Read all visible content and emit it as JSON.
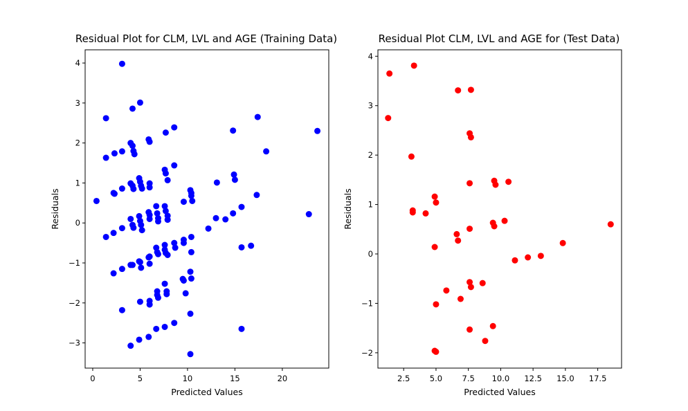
{
  "chart_data": [
    {
      "type": "scatter",
      "title": "Residual Plot for CLM, LVL and AGE (Training Data)",
      "xlabel": "Predicted Values",
      "ylabel": "Residuals",
      "xlim": [
        -0.8,
        24.9
      ],
      "ylim": [
        -3.63,
        4.33
      ],
      "xticks": [
        0,
        5,
        10,
        15,
        20
      ],
      "xtick_labels": [
        "0",
        "5",
        "10",
        "15",
        "20"
      ],
      "yticks": [
        -3,
        -2,
        -1,
        0,
        1,
        2,
        3,
        4
      ],
      "ytick_labels": [
        "−3",
        "−2",
        "−1",
        "0",
        "1",
        "2",
        "3",
        "4"
      ],
      "grid": false,
      "color": "#0000ff",
      "points": [
        {
          "x": 3.1,
          "y": 3.98
        },
        {
          "x": 5.0,
          "y": 3.01
        },
        {
          "x": 4.2,
          "y": 2.86
        },
        {
          "x": 1.4,
          "y": 2.62
        },
        {
          "x": 17.4,
          "y": 2.65
        },
        {
          "x": 8.6,
          "y": 2.39
        },
        {
          "x": 7.7,
          "y": 2.26
        },
        {
          "x": 14.8,
          "y": 2.31
        },
        {
          "x": 23.7,
          "y": 2.3
        },
        {
          "x": 5.9,
          "y": 2.09
        },
        {
          "x": 6.0,
          "y": 2.03
        },
        {
          "x": 4.0,
          "y": 2.0
        },
        {
          "x": 4.2,
          "y": 1.93
        },
        {
          "x": 4.3,
          "y": 1.8
        },
        {
          "x": 3.1,
          "y": 1.79
        },
        {
          "x": 2.3,
          "y": 1.74
        },
        {
          "x": 4.4,
          "y": 1.72
        },
        {
          "x": 18.3,
          "y": 1.79
        },
        {
          "x": 1.4,
          "y": 1.63
        },
        {
          "x": 8.6,
          "y": 1.44
        },
        {
          "x": 7.6,
          "y": 1.33
        },
        {
          "x": 7.7,
          "y": 1.24
        },
        {
          "x": 14.9,
          "y": 1.21
        },
        {
          "x": 4.9,
          "y": 1.12
        },
        {
          "x": 15.0,
          "y": 1.08
        },
        {
          "x": 7.9,
          "y": 1.07
        },
        {
          "x": 13.1,
          "y": 1.01
        },
        {
          "x": 5.0,
          "y": 1.03
        },
        {
          "x": 4.0,
          "y": 0.99
        },
        {
          "x": 6.0,
          "y": 0.99
        },
        {
          "x": 5.1,
          "y": 0.93
        },
        {
          "x": 4.2,
          "y": 0.93
        },
        {
          "x": 4.3,
          "y": 0.85
        },
        {
          "x": 3.1,
          "y": 0.86
        },
        {
          "x": 5.2,
          "y": 0.86
        },
        {
          "x": 6.0,
          "y": 0.89
        },
        {
          "x": 10.3,
          "y": 0.82
        },
        {
          "x": 10.4,
          "y": 0.75
        },
        {
          "x": 2.2,
          "y": 0.75
        },
        {
          "x": 2.3,
          "y": 0.73
        },
        {
          "x": 10.4,
          "y": 0.68
        },
        {
          "x": 17.3,
          "y": 0.7
        },
        {
          "x": 0.4,
          "y": 0.55
        },
        {
          "x": 9.6,
          "y": 0.53
        },
        {
          "x": 10.5,
          "y": 0.55
        },
        {
          "x": 7.6,
          "y": 0.42
        },
        {
          "x": 6.7,
          "y": 0.42
        },
        {
          "x": 15.7,
          "y": 0.4
        },
        {
          "x": 5.9,
          "y": 0.27
        },
        {
          "x": 7.7,
          "y": 0.3
        },
        {
          "x": 6.0,
          "y": 0.2
        },
        {
          "x": 6.8,
          "y": 0.24
        },
        {
          "x": 4.9,
          "y": 0.17
        },
        {
          "x": 7.9,
          "y": 0.18
        },
        {
          "x": 22.8,
          "y": 0.22
        },
        {
          "x": 14.8,
          "y": 0.24
        },
        {
          "x": 13.0,
          "y": 0.12
        },
        {
          "x": 4.0,
          "y": 0.1
        },
        {
          "x": 6.0,
          "y": 0.1
        },
        {
          "x": 6.9,
          "y": 0.12
        },
        {
          "x": 5.0,
          "y": 0.05
        },
        {
          "x": 6.9,
          "y": 0.04
        },
        {
          "x": 7.9,
          "y": 0.08
        },
        {
          "x": 14.0,
          "y": 0.09
        },
        {
          "x": 4.2,
          "y": -0.05
        },
        {
          "x": 5.1,
          "y": -0.05
        },
        {
          "x": 4.3,
          "y": -0.12
        },
        {
          "x": 3.1,
          "y": -0.13
        },
        {
          "x": 12.2,
          "y": -0.14
        },
        {
          "x": 5.2,
          "y": -0.18
        },
        {
          "x": 2.2,
          "y": -0.25
        },
        {
          "x": 1.4,
          "y": -0.35
        },
        {
          "x": 10.4,
          "y": -0.35
        },
        {
          "x": 9.6,
          "y": -0.42
        },
        {
          "x": 8.6,
          "y": -0.5
        },
        {
          "x": 9.6,
          "y": -0.5
        },
        {
          "x": 7.6,
          "y": -0.55
        },
        {
          "x": 16.7,
          "y": -0.57
        },
        {
          "x": 15.7,
          "y": -0.61
        },
        {
          "x": 6.7,
          "y": -0.62
        },
        {
          "x": 8.7,
          "y": -0.62
        },
        {
          "x": 7.6,
          "y": -0.67
        },
        {
          "x": 6.8,
          "y": -0.73
        },
        {
          "x": 10.4,
          "y": -0.73
        },
        {
          "x": 7.7,
          "y": -0.75
        },
        {
          "x": 6.9,
          "y": -0.78
        },
        {
          "x": 7.9,
          "y": -0.8
        },
        {
          "x": 6.0,
          "y": -0.84
        },
        {
          "x": 5.9,
          "y": -0.86
        },
        {
          "x": 4.9,
          "y": -0.96
        },
        {
          "x": 5.0,
          "y": -0.98
        },
        {
          "x": 6.0,
          "y": -1.02
        },
        {
          "x": 4.0,
          "y": -1.05
        },
        {
          "x": 4.2,
          "y": -1.05
        },
        {
          "x": 5.1,
          "y": -1.12
        },
        {
          "x": 3.1,
          "y": -1.15
        },
        {
          "x": 2.2,
          "y": -1.26
        },
        {
          "x": 10.3,
          "y": -1.22
        },
        {
          "x": 10.4,
          "y": -1.39
        },
        {
          "x": 9.5,
          "y": -1.4
        },
        {
          "x": 9.6,
          "y": -1.44
        },
        {
          "x": 7.6,
          "y": -1.52
        },
        {
          "x": 9.8,
          "y": -1.76
        },
        {
          "x": 6.8,
          "y": -1.71
        },
        {
          "x": 7.8,
          "y": -1.71
        },
        {
          "x": 7.8,
          "y": -1.78
        },
        {
          "x": 6.8,
          "y": -1.8
        },
        {
          "x": 6.9,
          "y": -1.87
        },
        {
          "x": 5.0,
          "y": -1.97
        },
        {
          "x": 6.0,
          "y": -1.95
        },
        {
          "x": 6.0,
          "y": -2.04
        },
        {
          "x": 3.1,
          "y": -2.18
        },
        {
          "x": 10.3,
          "y": -2.27
        },
        {
          "x": 8.6,
          "y": -2.5
        },
        {
          "x": 7.6,
          "y": -2.6
        },
        {
          "x": 6.7,
          "y": -2.65
        },
        {
          "x": 15.7,
          "y": -2.65
        },
        {
          "x": 5.9,
          "y": -2.85
        },
        {
          "x": 4.9,
          "y": -2.92
        },
        {
          "x": 4.0,
          "y": -3.07
        },
        {
          "x": 10.3,
          "y": -3.28
        }
      ]
    },
    {
      "type": "scatter",
      "title": "Residual Plot CLM, LVL and AGE for (Test Data)",
      "xlabel": "Predicted Values",
      "ylabel": "Residuals",
      "xlim": [
        0.51,
        19.34
      ],
      "ylim": [
        -2.31,
        4.13
      ],
      "xticks": [
        2.5,
        5.0,
        7.5,
        10.0,
        12.5,
        15.0,
        17.5
      ],
      "xtick_labels": [
        "2.5",
        "5.0",
        "7.5",
        "10.0",
        "12.5",
        "15.0",
        "17.5"
      ],
      "yticks": [
        -2,
        -1,
        0,
        1,
        2,
        3,
        4
      ],
      "ytick_labels": [
        "−2",
        "−1",
        "0",
        "1",
        "2",
        "3",
        "4"
      ],
      "grid": false,
      "color": "#ff0000",
      "points": [
        {
          "x": 1.4,
          "y": 3.65
        },
        {
          "x": 3.3,
          "y": 3.81
        },
        {
          "x": 6.7,
          "y": 3.31
        },
        {
          "x": 7.7,
          "y": 3.32
        },
        {
          "x": 1.3,
          "y": 2.75
        },
        {
          "x": 7.6,
          "y": 2.44
        },
        {
          "x": 7.7,
          "y": 2.36
        },
        {
          "x": 3.1,
          "y": 1.97
        },
        {
          "x": 9.5,
          "y": 1.48
        },
        {
          "x": 7.6,
          "y": 1.43
        },
        {
          "x": 10.6,
          "y": 1.46
        },
        {
          "x": 9.6,
          "y": 1.4
        },
        {
          "x": 4.9,
          "y": 1.16
        },
        {
          "x": 5.0,
          "y": 1.04
        },
        {
          "x": 3.2,
          "y": 0.88
        },
        {
          "x": 3.2,
          "y": 0.84
        },
        {
          "x": 4.2,
          "y": 0.82
        },
        {
          "x": 9.4,
          "y": 0.63
        },
        {
          "x": 10.3,
          "y": 0.67
        },
        {
          "x": 9.5,
          "y": 0.56
        },
        {
          "x": 18.5,
          "y": 0.6
        },
        {
          "x": 7.6,
          "y": 0.51
        },
        {
          "x": 6.6,
          "y": 0.4
        },
        {
          "x": 6.7,
          "y": 0.27
        },
        {
          "x": 14.8,
          "y": 0.22
        },
        {
          "x": 4.9,
          "y": 0.14
        },
        {
          "x": 13.1,
          "y": -0.04
        },
        {
          "x": 12.1,
          "y": -0.07
        },
        {
          "x": 11.1,
          "y": -0.13
        },
        {
          "x": 7.6,
          "y": -0.57
        },
        {
          "x": 8.6,
          "y": -0.59
        },
        {
          "x": 7.7,
          "y": -0.67
        },
        {
          "x": 5.8,
          "y": -0.74
        },
        {
          "x": 6.9,
          "y": -0.91
        },
        {
          "x": 5.0,
          "y": -1.02
        },
        {
          "x": 9.4,
          "y": -1.46
        },
        {
          "x": 7.6,
          "y": -1.53
        },
        {
          "x": 8.8,
          "y": -1.76
        },
        {
          "x": 4.9,
          "y": -1.96
        },
        {
          "x": 5.0,
          "y": -1.98
        }
      ]
    }
  ]
}
